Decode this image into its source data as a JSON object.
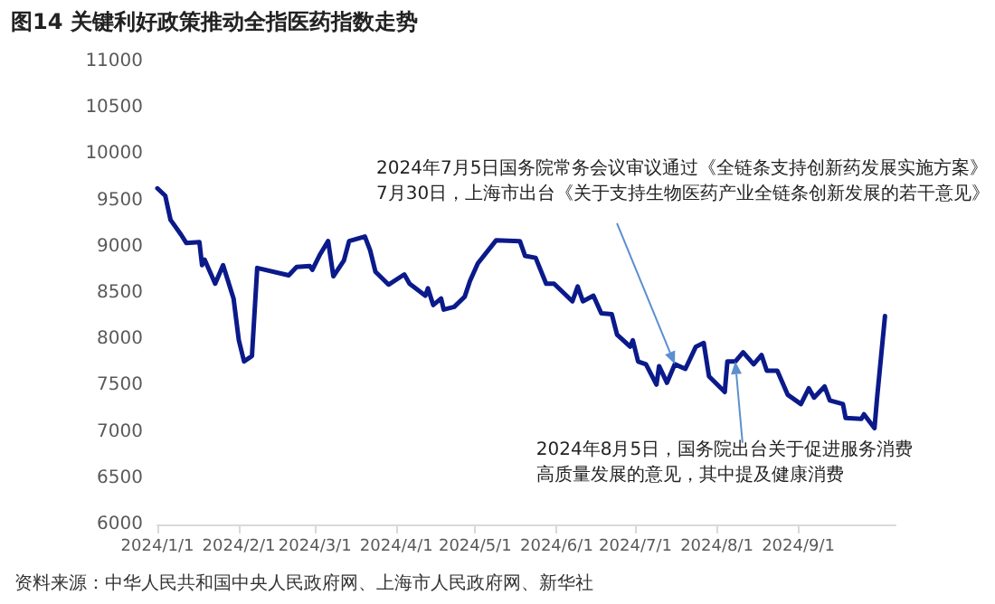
{
  "chart_data": {
    "type": "line",
    "title": "图14 关键利好政策推动全指医药指数走势",
    "x": [
      "2024-01-01",
      "2024-01-04",
      "2024-01-06",
      "2024-01-10",
      "2024-01-12",
      "2024-01-17",
      "2024-01-18",
      "2024-01-19",
      "2024-01-23",
      "2024-01-26",
      "2024-01-30",
      "2024-02-01",
      "2024-02-03",
      "2024-02-06",
      "2024-02-08",
      "2024-02-20",
      "2024-02-23",
      "2024-02-28",
      "2024-02-29",
      "2024-03-03",
      "2024-03-06",
      "2024-03-08",
      "2024-03-12",
      "2024-03-14",
      "2024-03-20",
      "2024-03-22",
      "2024-03-24",
      "2024-03-29",
      "2024-04-04",
      "2024-04-06",
      "2024-04-12",
      "2024-04-13",
      "2024-04-15",
      "2024-04-18",
      "2024-04-19",
      "2024-04-23",
      "2024-04-27",
      "2024-04-29",
      "2024-05-02",
      "2024-05-09",
      "2024-05-18",
      "2024-05-20",
      "2024-05-24",
      "2024-05-28",
      "2024-05-31",
      "2024-06-07",
      "2024-06-09",
      "2024-06-11",
      "2024-06-15",
      "2024-06-18",
      "2024-06-22",
      "2024-06-24",
      "2024-06-29",
      "2024-06-30",
      "2024-07-02",
      "2024-07-05",
      "2024-07-09",
      "2024-07-10",
      "2024-07-13",
      "2024-07-16",
      "2024-07-20",
      "2024-07-24",
      "2024-07-27",
      "2024-07-29",
      "2024-08-04",
      "2024-08-05",
      "2024-08-08",
      "2024-08-11",
      "2024-08-15",
      "2024-08-18",
      "2024-08-20",
      "2024-08-24",
      "2024-08-28",
      "2024-09-02",
      "2024-09-05",
      "2024-09-07",
      "2024-09-11",
      "2024-09-13",
      "2024-09-18",
      "2024-09-19",
      "2024-09-25",
      "2024-09-26",
      "2024-09-30",
      "2024-10-01",
      "2024-10-04"
    ],
    "series": [
      {
        "color": "#0b1a8a",
        "values": [
          9630,
          9550,
          9290,
          9130,
          9040,
          9050,
          8800,
          8860,
          8600,
          8800,
          8440,
          7990,
          7760,
          7820,
          8770,
          8690,
          8780,
          8790,
          8750,
          8920,
          9060,
          8680,
          8850,
          9060,
          9110,
          8960,
          8730,
          8590,
          8700,
          8600,
          8470,
          8550,
          8370,
          8440,
          8320,
          8350,
          8460,
          8630,
          8820,
          9070,
          9060,
          8900,
          8880,
          8600,
          8600,
          8410,
          8570,
          8410,
          8470,
          8280,
          8270,
          8050,
          7920,
          7990,
          7760,
          7730,
          7510,
          7710,
          7530,
          7730,
          7680,
          7920,
          7960,
          7600,
          7430,
          7760,
          7760,
          7860,
          7730,
          7830,
          7660,
          7660,
          7400,
          7300,
          7470,
          7370,
          7490,
          7340,
          7300,
          7150,
          7140,
          7190,
          7040,
          7370,
          8250
        ]
      }
    ],
    "xlim": [
      "2024-01-01",
      "2024-10-08"
    ],
    "xticks": [
      {
        "value": "2024-01-01",
        "label": "2024/1/1"
      },
      {
        "value": "2024-02-01",
        "label": "2024/2/1"
      },
      {
        "value": "2024-03-01",
        "label": "2024/3/1"
      },
      {
        "value": "2024-04-01",
        "label": "2024/4/1"
      },
      {
        "value": "2024-05-01",
        "label": "2024/5/1"
      },
      {
        "value": "2024-06-01",
        "label": "2024/6/1"
      },
      {
        "value": "2024-07-01",
        "label": "2024/7/1"
      },
      {
        "value": "2024-08-01",
        "label": "2024/8/1"
      },
      {
        "value": "2024-09-01",
        "label": "2024/9/1"
      }
    ],
    "ylim": [
      6000,
      11000
    ],
    "yticks": [
      6000,
      6500,
      7000,
      7500,
      8000,
      8500,
      9000,
      9500,
      10000,
      10500,
      11000
    ],
    "grid": false,
    "marker": "none",
    "line_style": "solid",
    "annotations": [
      {
        "text": "2024年7月5日国务院常务会议审议通过《全链条支持创新药发展实施方案》\n7月30日，上海市出台《关于支持生物医药产业全链条创新发展的若干意见》",
        "x": "2024-07-16",
        "y": 7730
      },
      {
        "text": "2024年8月5日，国务院出台关于促进服务消费高质量发展的意见，其中提及健康消费",
        "x": "2024-08-08",
        "y": 7760
      },
      "资料来源：中华人民共和国中央人民政府网、上海市人民政府网、新华社"
    ]
  }
}
